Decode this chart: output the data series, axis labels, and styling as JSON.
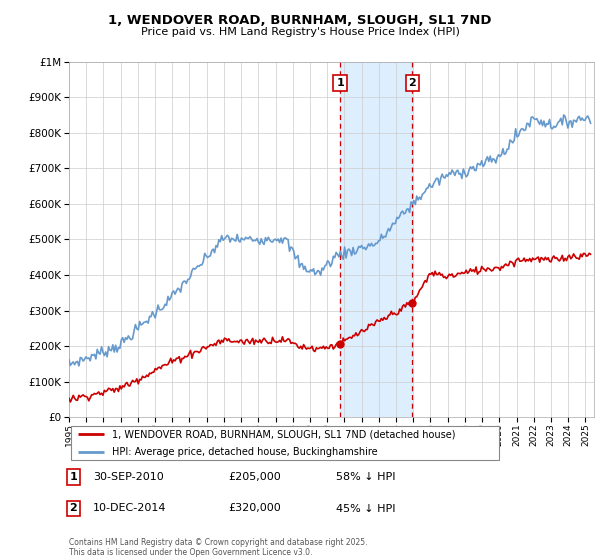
{
  "title": "1, WENDOVER ROAD, BURNHAM, SLOUGH, SL1 7ND",
  "subtitle": "Price paid vs. HM Land Registry's House Price Index (HPI)",
  "sale1_date": 2010.75,
  "sale2_date": 2014.94,
  "sale1_price": 205000,
  "sale2_price": 320000,
  "sale1_label": "30-SEP-2010",
  "sale2_label": "10-DEC-2014",
  "sale1_pct": "58% ↓ HPI",
  "sale2_pct": "45% ↓ HPI",
  "legend1": "1, WENDOVER ROAD, BURNHAM, SLOUGH, SL1 7ND (detached house)",
  "legend2": "HPI: Average price, detached house, Buckinghamshire",
  "footer": "Contains HM Land Registry data © Crown copyright and database right 2025.\nThis data is licensed under the Open Government Licence v3.0.",
  "red_color": "#cc0000",
  "blue_color": "#6699cc",
  "shade_color": "#ddeeff",
  "ylim": [
    0,
    1000000
  ],
  "xlim_start": 1995,
  "xlim_end": 2025.5
}
